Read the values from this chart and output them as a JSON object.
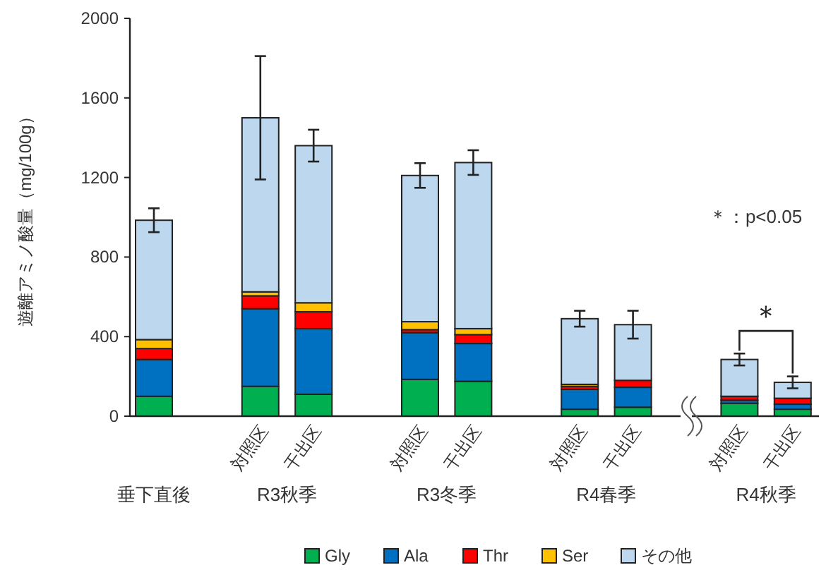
{
  "chart_data": {
    "type": "bar",
    "stacked": true,
    "ylabel": "遊離アミノ酸量（mg/100g）",
    "categories": [
      null,
      "対照区",
      "干出区",
      "対照区",
      "干出区",
      "対照区",
      "干出区",
      "対照区",
      "干出区"
    ],
    "series": [
      {
        "name": "Gly",
        "color": "#00b050",
        "values": [
          100,
          150,
          110,
          185,
          175,
          35,
          45,
          65,
          35
        ]
      },
      {
        "name": "Ala",
        "color": "#0070c0",
        "values": [
          185,
          390,
          330,
          235,
          190,
          100,
          100,
          15,
          25
        ]
      },
      {
        "name": "Thr",
        "color": "#ff0000",
        "values": [
          55,
          65,
          85,
          15,
          45,
          15,
          35,
          20,
          30
        ]
      },
      {
        "name": "Ser",
        "color": "#ffc000",
        "values": [
          45,
          20,
          45,
          40,
          30,
          10,
          null,
          null,
          null
        ]
      },
      {
        "name": "その他",
        "color": "#bdd7ee",
        "values": [
          600,
          875,
          790,
          735,
          835,
          330,
          280,
          185,
          80
        ],
        "errors": [
          60,
          310,
          80,
          62,
          62,
          40,
          70,
          30,
          30
        ]
      }
    ],
    "ylim": [
      0,
      2000
    ],
    "yticks": [
      0,
      400,
      800,
      1200,
      1600,
      2000
    ],
    "legend": "bottom",
    "annotations": [
      "垂下直後",
      "R3秋季",
      "R3冬季",
      "R4春季",
      "R4秋季",
      "＊：p<0.05",
      "＊"
    ]
  }
}
